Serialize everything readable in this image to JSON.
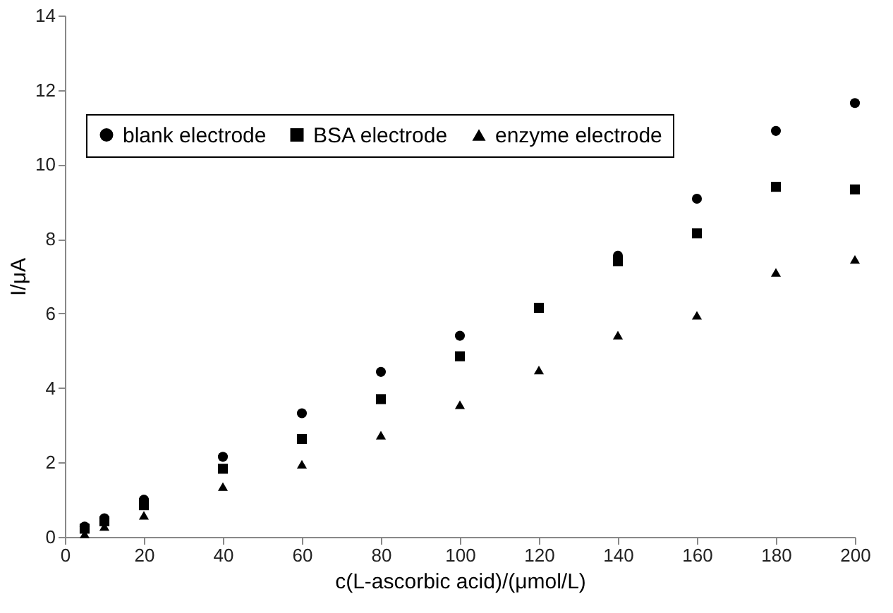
{
  "chart_data": {
    "type": "scatter",
    "xlabel": "c(L-ascorbic acid)/(μmol/L)",
    "ylabel": "I/μA",
    "x": [
      5,
      10,
      20,
      40,
      60,
      80,
      100,
      120,
      140,
      160,
      180,
      200
    ],
    "series": [
      {
        "name": "blank electrode",
        "color": "#000000",
        "marker": "circle",
        "values": [
          0.28,
          0.5,
          1.0,
          2.15,
          3.32,
          4.43,
          5.4,
          null,
          7.55,
          9.08,
          10.9,
          11.65
        ]
      },
      {
        "name": "BSA electrode",
        "color": "#000000",
        "marker": "square",
        "values": [
          0.22,
          0.42,
          0.85,
          1.83,
          2.63,
          3.7,
          4.85,
          6.15,
          7.4,
          8.15,
          9.4,
          9.33
        ]
      },
      {
        "name": "enzyme electrode",
        "color": "#000000",
        "marker": "triangle",
        "values": [
          0.08,
          0.28,
          0.58,
          1.35,
          1.95,
          2.73,
          3.55,
          4.48,
          5.42,
          5.95,
          7.1,
          7.45
        ]
      }
    ],
    "xlim": [
      0,
      200
    ],
    "xticks": [
      0,
      20,
      40,
      60,
      80,
      100,
      120,
      140,
      160,
      180,
      200
    ],
    "ylim": [
      0,
      14
    ],
    "yticks": [
      0,
      2,
      4,
      6,
      8,
      10,
      12,
      14
    ],
    "grid": false,
    "legend": "top left"
  }
}
